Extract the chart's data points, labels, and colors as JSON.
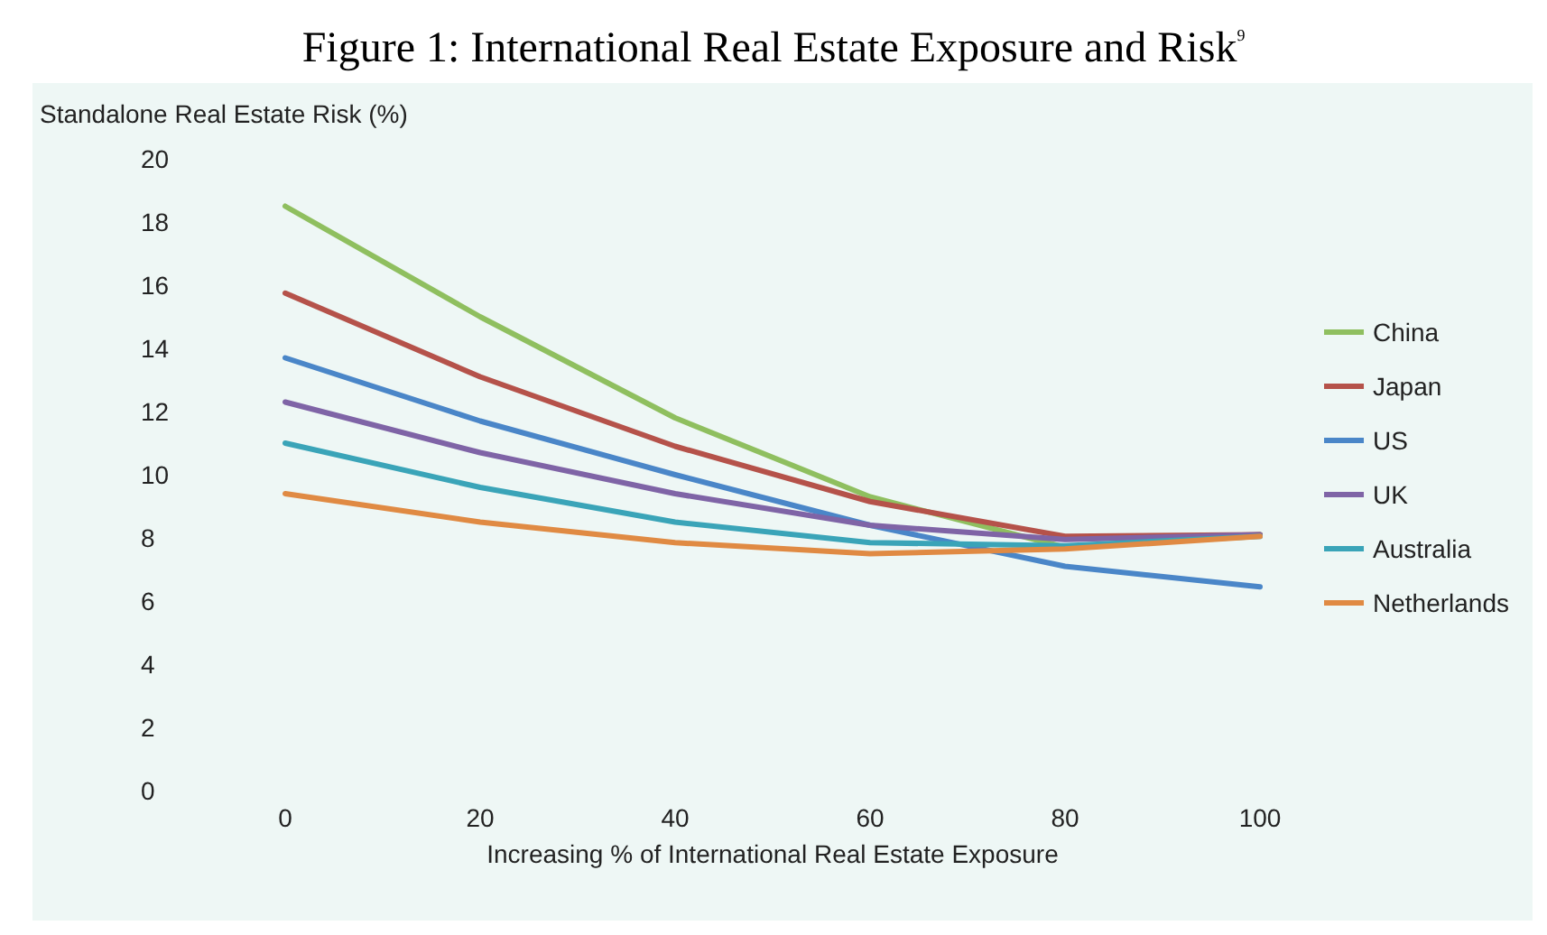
{
  "chart_data": {
    "type": "line",
    "title": "Figure 1: International Real Estate Exposure and Risk$^{9}$",
    "xlabel": "Increasing % of International Real Estate Exposure",
    "ylabel": "Standalone Real Estate Risk (%)",
    "x": [
      0,
      20,
      40,
      60,
      80,
      100
    ],
    "series": [
      {
        "name": "China",
        "color": "#8fbf5f",
        "values": [
          18.5,
          15.0,
          11.8,
          9.3,
          7.7,
          8.1
        ]
      },
      {
        "name": "Japan",
        "color": "#b5524a",
        "values": [
          15.75,
          13.1,
          10.9,
          9.15,
          8.05,
          8.1
        ]
      },
      {
        "name": "US",
        "color": "#4a86c8",
        "values": [
          13.7,
          11.7,
          10.0,
          8.4,
          7.1,
          6.45
        ]
      },
      {
        "name": "UK",
        "color": "#7f64a6",
        "values": [
          12.3,
          10.7,
          9.4,
          8.4,
          7.95,
          8.1
        ]
      },
      {
        "name": "Australia",
        "color": "#3aa4b8",
        "values": [
          11.0,
          9.6,
          8.5,
          7.85,
          7.75,
          8.05
        ]
      },
      {
        "name": "Netherlands",
        "color": "#e08a43",
        "values": [
          9.4,
          8.5,
          7.85,
          7.5,
          7.65,
          8.05
        ]
      }
    ],
    "xlim": [
      0,
      100
    ],
    "xticks": [
      0,
      20,
      40,
      60,
      80,
      100
    ],
    "ylim": [
      0,
      20
    ],
    "yticks": [
      0,
      2,
      4,
      6,
      8,
      10,
      12,
      14,
      16,
      18,
      20
    ],
    "grid": false,
    "legend": "right",
    "marker": "none",
    "line_style": "solid"
  }
}
